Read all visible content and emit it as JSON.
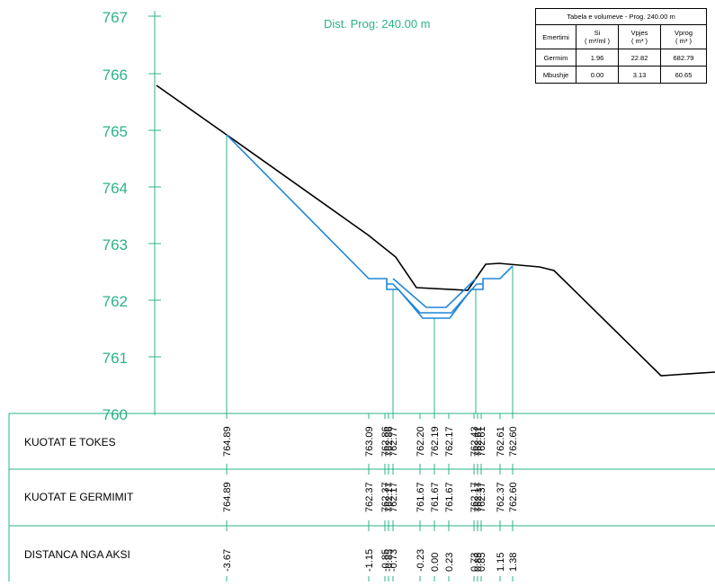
{
  "dist_label": "Dist. Prog: 240.00 m",
  "elevation_labels": [
    "767",
    "766",
    "765",
    "764",
    "763",
    "762",
    "761",
    "760"
  ],
  "volume_table": {
    "caption": "Tabela e volumeve - Prog. 240.00 m",
    "headers": [
      {
        "name": "Emertimi",
        "unit": ""
      },
      {
        "name": "Si",
        "unit": "( m²/ml )"
      },
      {
        "name": "Vpjes",
        "unit": "( m³ )"
      },
      {
        "name": "Vprog",
        "unit": "( m³ )"
      }
    ],
    "rows": [
      {
        "name": "Germim",
        "si": "1.96",
        "vpjes": "22.82",
        "vprog": "682.79"
      },
      {
        "name": "Mbushje",
        "si": "0.00",
        "vpjes": "3.13",
        "vprog": "60.65"
      }
    ]
  },
  "band_rows": {
    "kuotat_tokes": "KUOTAT E TOKES",
    "kuotat_germimit": "KUOTAT E GERMIMIT",
    "distanca": "DISTANCA NGA AKSI"
  },
  "stations": [
    {
      "dist": "-3.67",
      "tokes": "764.89",
      "germim": "764.89"
    },
    {
      "dist": "-1.15",
      "tokes": "763.09",
      "germim": "762.37"
    },
    {
      "dist": "-0.85",
      "tokes": "762.86",
      "germim": "762.37"
    },
    {
      "dist": "-0.85",
      "tokes": "762.86",
      "germim": "762.17"
    },
    {
      "dist": "-0.73",
      "tokes": "762.77",
      "germim": "762.17"
    },
    {
      "dist": "-0.23",
      "tokes": "762.20",
      "germim": "761.67"
    },
    {
      "dist": "0.00",
      "tokes": "762.19",
      "germim": "761.67"
    },
    {
      "dist": "0.23",
      "tokes": "762.17",
      "germim": "761.67"
    },
    {
      "dist": "0.73",
      "tokes": "762.43",
      "germim": "762.17"
    },
    {
      "dist": "0.85",
      "tokes": "762.61",
      "germim": "762.17"
    },
    {
      "dist": "0.85",
      "tokes": "762.61",
      "germim": "762.37"
    },
    {
      "dist": "1.15",
      "tokes": "762.61",
      "germim": "762.37"
    },
    {
      "dist": "1.38",
      "tokes": "762.60",
      "germim": "762.60"
    }
  ],
  "colors": {
    "axis": "#2bb38a",
    "ground": "#000000",
    "design": "#1f86d9",
    "leader": "#2bb38a"
  }
}
